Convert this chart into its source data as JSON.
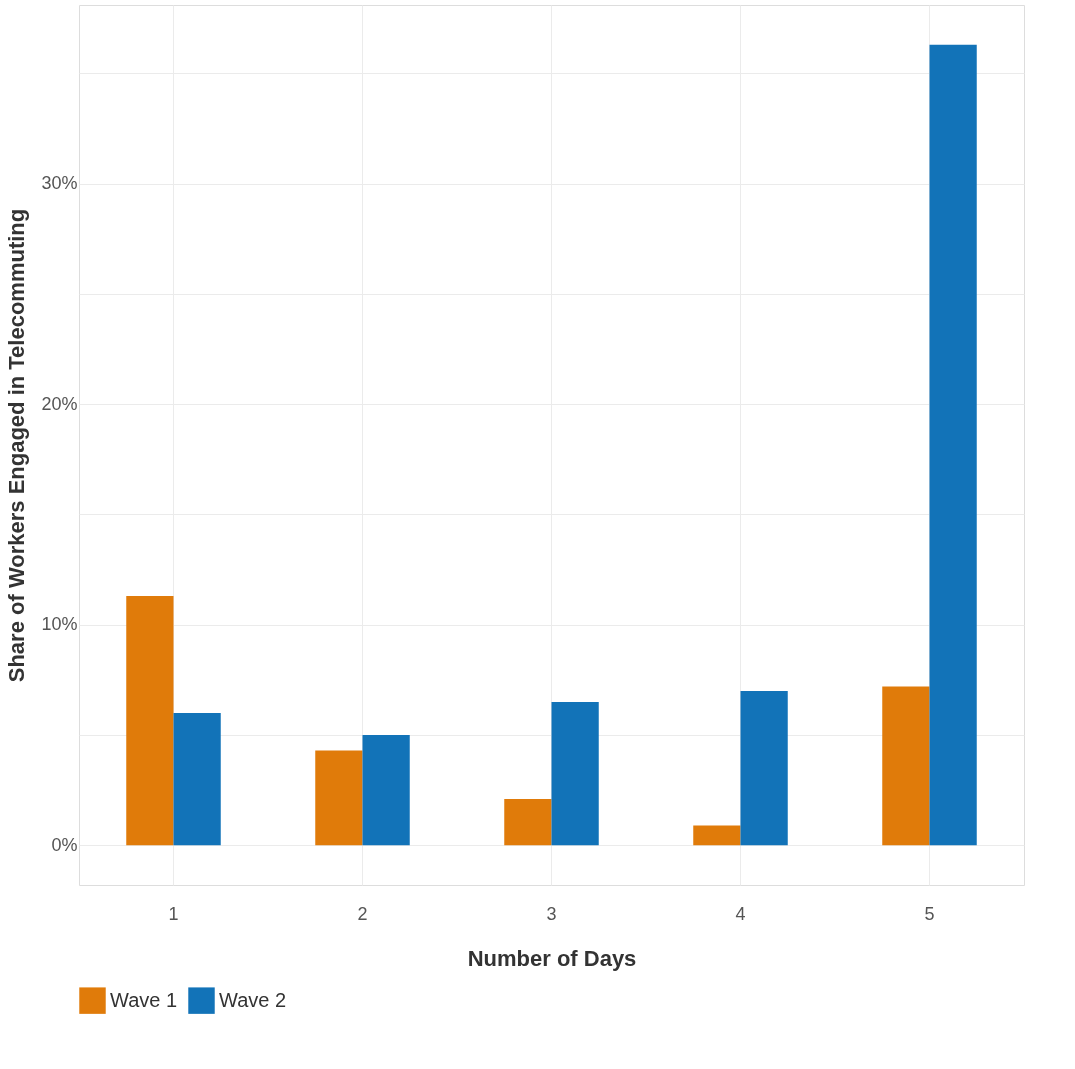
{
  "chart_data": {
    "type": "bar",
    "xlabel": "Number of Days",
    "ylabel": "Share of Workers Engaged in Telecommuting",
    "categories": [
      "1",
      "2",
      "3",
      "4",
      "5"
    ],
    "series": [
      {
        "name": "Wave 1",
        "color": "#e07b0a",
        "values": [
          11.3,
          4.3,
          2.1,
          0.9,
          7.2
        ]
      },
      {
        "name": "Wave 2",
        "color": "#1273b8",
        "values": [
          6.0,
          5.0,
          6.5,
          7.0,
          36.3
        ]
      }
    ],
    "ylim": [
      -1.8,
      38.1
    ],
    "yticks": [
      {
        "value": 0,
        "label": "0%"
      },
      {
        "value": 5,
        "label": null
      },
      {
        "value": 10,
        "label": "10%"
      },
      {
        "value": 15,
        "label": null
      },
      {
        "value": 20,
        "label": "20%"
      },
      {
        "value": 25,
        "label": null
      },
      {
        "value": 30,
        "label": "30%"
      },
      {
        "value": 35,
        "label": null
      }
    ],
    "grid": true,
    "legend": "bottom"
  }
}
